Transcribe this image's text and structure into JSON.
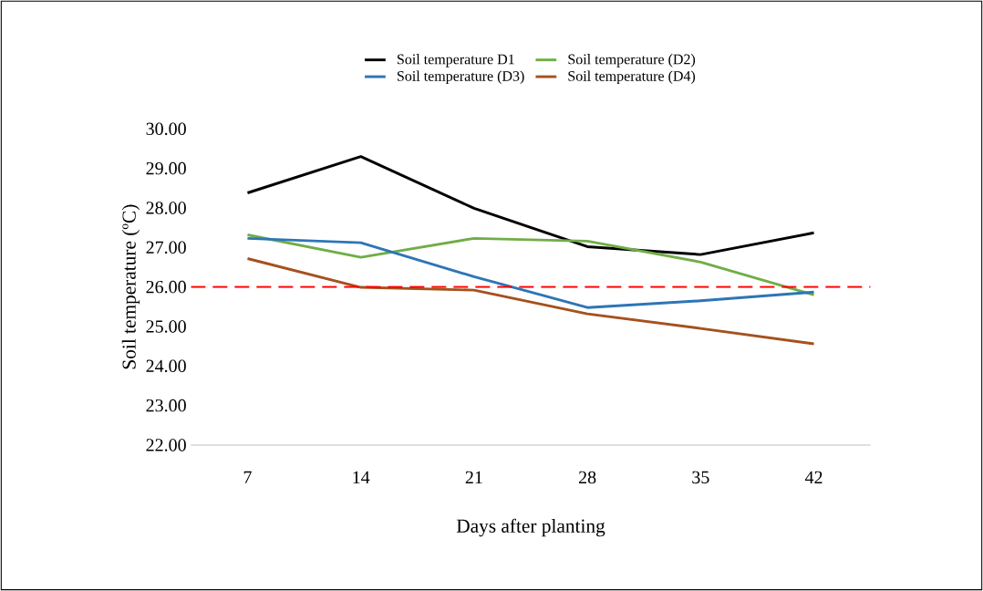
{
  "chart_data": {
    "type": "line",
    "xlabel": "Days after planting",
    "ylabel": "Soil temperature (ºC)",
    "categories": [
      "7",
      "14",
      "21",
      "28",
      "35",
      "42"
    ],
    "series": [
      {
        "name": "Soil temperature D1",
        "color": "#000000",
        "values": [
          28.38,
          29.3,
          27.99,
          27.02,
          26.82,
          27.37
        ]
      },
      {
        "name": "Soil temperature (D2)",
        "color": "#70ad47",
        "values": [
          27.32,
          26.75,
          27.23,
          27.16,
          26.63,
          25.8
        ]
      },
      {
        "name": "Soil temperature (D3)",
        "color": "#2e75b6",
        "values": [
          27.23,
          27.12,
          26.26,
          25.48,
          25.65,
          25.87
        ]
      },
      {
        "name": "Soil temperature (D4)",
        "color": "#a5511e",
        "values": [
          26.72,
          25.99,
          25.92,
          25.32,
          24.95,
          24.56
        ]
      }
    ],
    "ylim": [
      22,
      30
    ],
    "yticks": [
      {
        "value": 22,
        "label": "22.00"
      },
      {
        "value": 23,
        "label": "23.00"
      },
      {
        "value": 24,
        "label": "24.00"
      },
      {
        "value": 25,
        "label": "25.00"
      },
      {
        "value": 26,
        "label": "26.00"
      },
      {
        "value": 27,
        "label": "27.00"
      },
      {
        "value": 28,
        "label": "28.00"
      },
      {
        "value": 29,
        "label": "29.00"
      },
      {
        "value": 30,
        "label": "30.00"
      }
    ],
    "ref_lines": [
      {
        "axis": "y",
        "value": 26,
        "color": "#ff0000",
        "line_style": "dashed"
      }
    ],
    "legend": "top",
    "marker": "none",
    "line_style": "solid"
  }
}
